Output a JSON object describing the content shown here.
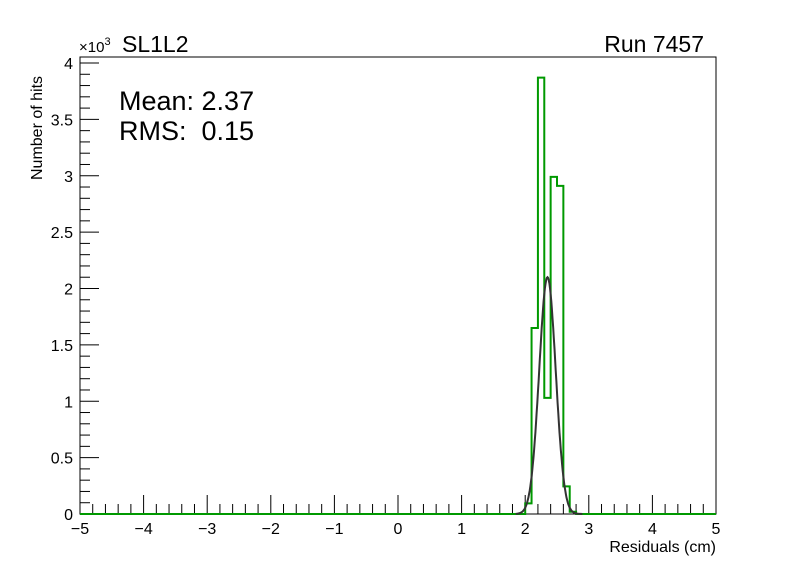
{
  "chart_data": {
    "type": "histogram",
    "title": "SL1L2",
    "run_label": "Run 7457",
    "xlabel": "Residuals (cm)",
    "ylabel": "Number of hits",
    "y_multiplier": "×10",
    "y_multiplier_exp": "3",
    "xlim": [
      -5,
      5
    ],
    "ylim": [
      0,
      4.05
    ],
    "x_ticks": [
      "−5",
      "−4",
      "−3",
      "−2",
      "−1",
      "0",
      "1",
      "2",
      "3",
      "4",
      "5"
    ],
    "y_ticks": [
      "0",
      "0.5",
      "1",
      "1.5",
      "2",
      "2.5",
      "3",
      "3.5",
      "4"
    ],
    "stats": {
      "mean": "Mean: 2.37",
      "rms": "RMS:  0.15"
    },
    "bin_width": 0.1,
    "bins": [
      {
        "x": 2.0,
        "value": 0.094
      },
      {
        "x": 2.1,
        "value": 1.65
      },
      {
        "x": 2.2,
        "value": 3.87
      },
      {
        "x": 2.3,
        "value": 1.03
      },
      {
        "x": 2.4,
        "value": 2.99
      },
      {
        "x": 2.5,
        "value": 2.91
      },
      {
        "x": 2.6,
        "value": 0.245
      },
      {
        "x": 2.7,
        "value": 0.02
      }
    ],
    "fit": {
      "type": "gaussian",
      "amplitude": 2.1,
      "mean": 2.35,
      "sigma": 0.13,
      "range": [
        1.85,
        2.9
      ]
    },
    "colors": {
      "histogram": "#009900",
      "fit": "#333333",
      "axis": "#000000"
    }
  }
}
